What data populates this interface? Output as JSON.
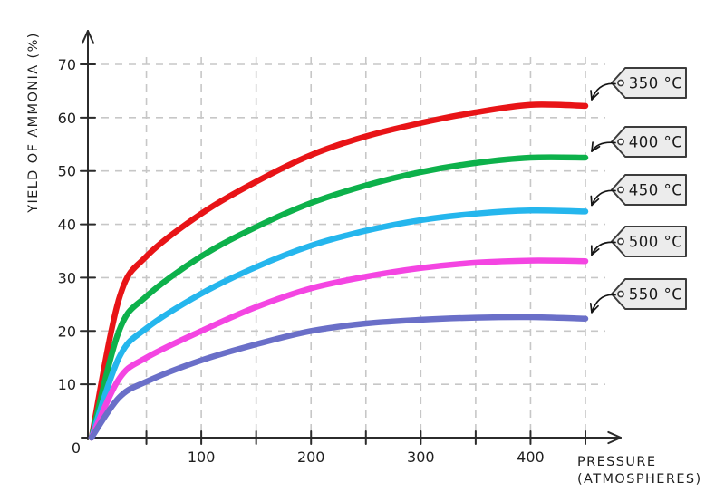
{
  "figure": {
    "background": "#ffffff",
    "axis_color": "#2b2b2b",
    "grid_color": "#c7c7c7",
    "text_color": "#1f1f1f",
    "tag_fill": "#ececec",
    "tag_border": "#3c3c3c",
    "arrow_color": "#151515"
  },
  "chart_data": {
    "type": "line",
    "title": "",
    "xlabel": "PRESSURE (ATMOSPHERES)",
    "xlabel_lines": [
      "PRESSURE",
      "(ATMOSPHERES)"
    ],
    "ylabel": "YIELD OF AMMONIA (%)",
    "xlim": [
      0,
      450
    ],
    "ylim": [
      0,
      70
    ],
    "x_grid_step": 50,
    "x_tick_step": 50,
    "x_tick_labels": [
      "100",
      "200",
      "300",
      "400"
    ],
    "x_tick_label_values": [
      100,
      200,
      300,
      400
    ],
    "y_tick_labels": [
      "10",
      "20",
      "30",
      "40",
      "50",
      "60",
      "70"
    ],
    "y_tick_values": [
      10,
      20,
      30,
      40,
      50,
      60,
      70
    ],
    "origin_label": "0",
    "grid": "dashed",
    "legend_style": "hang-tags-with-arrows",
    "legend_position": "right",
    "x": [
      0,
      25,
      50,
      100,
      150,
      200,
      250,
      300,
      350,
      400,
      450
    ],
    "series": [
      {
        "name": "350 °C",
        "color": "#e81417",
        "values": [
          0,
          26,
          34,
          42,
          48,
          53,
          56.5,
          59,
          61,
          62.4,
          62.2
        ]
      },
      {
        "name": "400 °C",
        "color": "#0db14b",
        "values": [
          0,
          20,
          26.5,
          34,
          39.5,
          44,
          47.3,
          49.8,
          51.5,
          52.5,
          52.5
        ]
      },
      {
        "name": "450 °C",
        "color": "#25b6ed",
        "values": [
          0,
          15,
          20.5,
          27,
          32,
          36,
          38.8,
          40.8,
          42,
          42.6,
          42.4
        ]
      },
      {
        "name": "500 °C",
        "color": "#f445e2",
        "values": [
          0,
          11,
          15,
          20,
          24.5,
          28,
          30.2,
          31.8,
          32.8,
          33.2,
          33.1
        ]
      },
      {
        "name": "550 °C",
        "color": "#6a6fc8",
        "values": [
          0,
          7.5,
          10.5,
          14.5,
          17.5,
          20,
          21.4,
          22.1,
          22.5,
          22.6,
          22.3
        ]
      }
    ]
  }
}
